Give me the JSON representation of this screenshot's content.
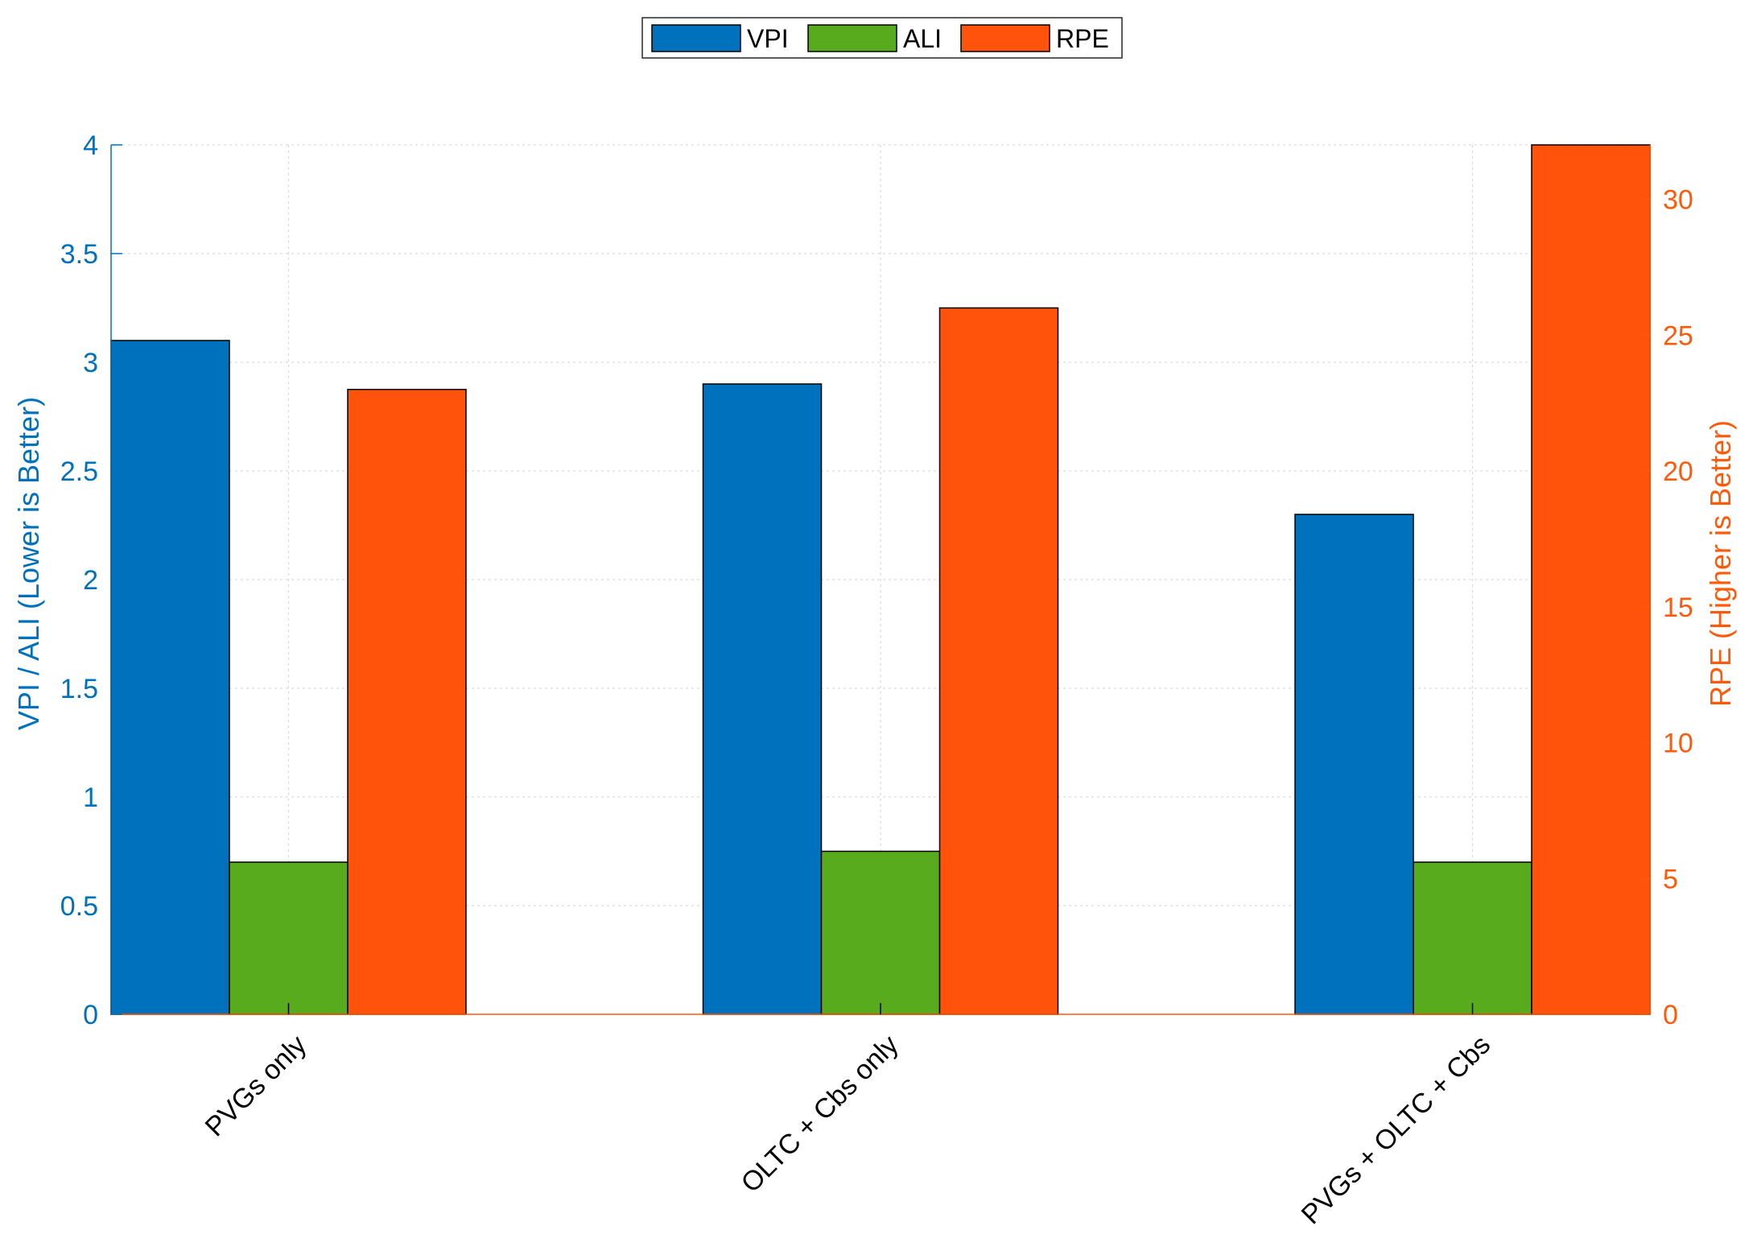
{
  "chart_data": {
    "type": "bar",
    "categories": [
      "PVGs only",
      "OLTC + Cbs only",
      "PVGs + OLTC + Cbs"
    ],
    "series": [
      {
        "name": "VPI",
        "axis": "left",
        "values": [
          3.1,
          2.9,
          2.3
        ],
        "color": "#0072bd"
      },
      {
        "name": "ALI",
        "axis": "left",
        "values": [
          0.7,
          0.75,
          0.7
        ],
        "color": "#58ab1c"
      },
      {
        "name": "RPE",
        "axis": "right",
        "values": [
          23.0,
          26.0,
          32.0
        ],
        "color": "#ff520a"
      }
    ],
    "ylabel_left": "VPI / ALI (Lower is Better)",
    "ylabel_right": "RPE (Higher is Better)",
    "ylim_left": [
      0,
      4
    ],
    "ylim_right": [
      0,
      32
    ],
    "yticks_left": [
      "0",
      "0.5",
      "1",
      "1.5",
      "2",
      "2.5",
      "3",
      "3.5",
      "4"
    ],
    "yticks_right": [
      "0",
      "5",
      "10",
      "15",
      "20",
      "25",
      "30"
    ],
    "left_axis_color": "#0072bd",
    "right_axis_color": "#ff5a0a",
    "grid": true,
    "legend_position": "top-center",
    "legend_orientation": "horizontal"
  }
}
